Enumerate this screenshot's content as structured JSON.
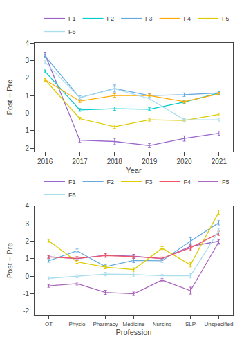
{
  "chart_data": [
    {
      "type": "line",
      "xlabel": "Year",
      "ylabel": "Post − Pre",
      "x": [
        2016,
        2017,
        2018,
        2019,
        2020,
        2021
      ],
      "xlim": [
        2015.7,
        2021.4
      ],
      "xticks": [
        2016,
        2017,
        2018,
        2019,
        2020,
        2021
      ],
      "ylim": [
        -2.2,
        4.0
      ],
      "yticks": [
        -2,
        -1,
        0,
        1,
        2,
        3,
        4
      ],
      "grid": false,
      "legend": "upper right",
      "series": [
        {
          "name": "F1",
          "color": "#9966cc",
          "values": [
            3.35,
            -1.55,
            -1.62,
            -1.85,
            -1.45,
            -1.15
          ],
          "errors": [
            0.12,
            0.12,
            0.18,
            0.12,
            0.15,
            0.12
          ]
        },
        {
          "name": "F2",
          "color": "#00cccc",
          "values": [
            2.38,
            0.18,
            0.25,
            0.22,
            0.62,
            1.15
          ],
          "errors": [
            0.08,
            0.08,
            0.1,
            0.08,
            0.08,
            0.08
          ]
        },
        {
          "name": "F3",
          "color": "#66aadd",
          "values": [
            3.25,
            0.88,
            1.4,
            1.0,
            1.05,
            1.15
          ],
          "errors": [
            0.1,
            0.1,
            0.2,
            0.1,
            0.1,
            0.1
          ]
        },
        {
          "name": "F4",
          "color": "#ffaa00",
          "values": [
            1.9,
            0.68,
            1.0,
            1.0,
            0.65,
            1.1
          ],
          "errors": [
            0.08,
            0.08,
            0.1,
            0.08,
            0.08,
            0.08
          ]
        },
        {
          "name": "F5",
          "color": "#ddcc00",
          "values": [
            1.9,
            -0.32,
            -0.78,
            -0.38,
            -0.42,
            -0.08
          ],
          "errors": [
            0.08,
            0.08,
            0.1,
            0.08,
            0.08,
            0.08
          ]
        },
        {
          "name": "F6",
          "color": "#aaddee",
          "values": [
            2.9,
            0.88,
            1.38,
            0.82,
            -0.38,
            -0.38
          ],
          "errors": [
            0.08,
            0.08,
            0.12,
            0.08,
            0.08,
            0.08
          ]
        }
      ]
    },
    {
      "type": "line",
      "xlabel": "Profession",
      "ylabel": "Post − Pre",
      "categories": [
        "OT",
        "Physio",
        "Pharmacy",
        "Medicine",
        "Nursing",
        "SLP",
        "Unspecified"
      ],
      "xlim": [
        -0.5,
        6.5
      ],
      "ylim": [
        -2.2,
        4.0
      ],
      "yticks": [
        -2,
        -1,
        0,
        1,
        2,
        3,
        4
      ],
      "grid": false,
      "legend": "upper right",
      "series": [
        {
          "name": "F1",
          "color": "#9966cc",
          "values": [
            1.12,
            1.0,
            1.2,
            1.15,
            1.0,
            1.7,
            2.0
          ],
          "errors": [
            0.08,
            0.08,
            0.1,
            0.1,
            0.08,
            0.15,
            0.12
          ]
        },
        {
          "name": "F2",
          "color": "#66aadd",
          "values": [
            0.88,
            1.45,
            0.55,
            0.9,
            0.88,
            2.0,
            3.05
          ],
          "errors": [
            0.08,
            0.1,
            0.1,
            0.12,
            0.08,
            0.2,
            0.12
          ]
        },
        {
          "name": "F3",
          "color": "#ddcc00",
          "values": [
            2.02,
            0.82,
            0.52,
            0.38,
            1.6,
            0.65,
            3.65
          ],
          "errors": [
            0.08,
            0.08,
            0.1,
            0.1,
            0.08,
            0.12,
            0.12
          ]
        },
        {
          "name": "F4",
          "color": "#ee5566",
          "values": [
            1.1,
            1.02,
            1.18,
            1.12,
            1.02,
            1.62,
            2.45
          ],
          "errors": [
            0.08,
            0.1,
            0.1,
            0.1,
            0.08,
            0.15,
            0.12
          ]
        },
        {
          "name": "F5",
          "color": "#aa66bb",
          "values": [
            -0.55,
            -0.42,
            -0.92,
            -1.0,
            -0.22,
            -0.82,
            1.95
          ],
          "errors": [
            0.08,
            0.08,
            0.12,
            0.1,
            0.08,
            0.2,
            0.12
          ]
        },
        {
          "name": "F6",
          "color": "#aaddee",
          "values": [
            -0.12,
            0.0,
            0.12,
            0.1,
            0.02,
            0.02,
            2.6
          ],
          "errors": [
            0.08,
            0.08,
            0.1,
            0.1,
            0.08,
            0.12,
            0.12
          ]
        }
      ]
    }
  ]
}
